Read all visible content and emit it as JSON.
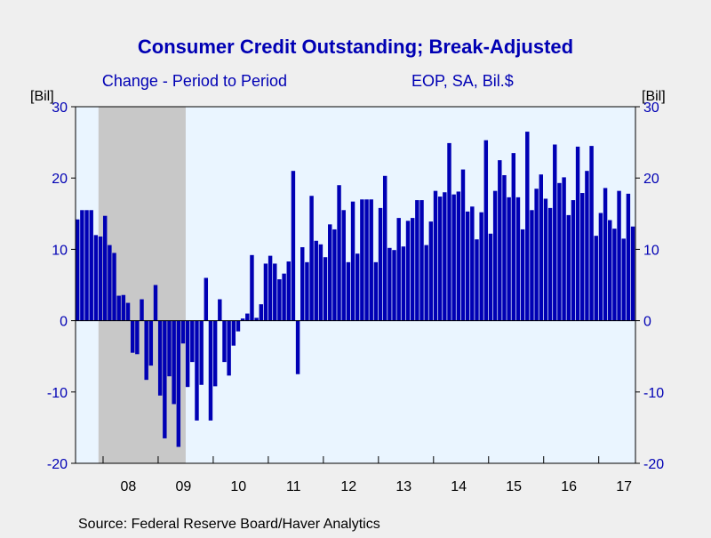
{
  "chart_data": {
    "type": "bar",
    "title": "Consumer Credit Outstanding; Break-Adjusted",
    "subtitle_left": "Change - Period to Period",
    "subtitle_right": "EOP, SA, Bil.$",
    "ylabel_left": "[Bil]",
    "ylabel_right": "[Bil]",
    "source": "Source:  Federal Reserve Board/Haver Analytics",
    "ylim": [
      -20,
      30
    ],
    "yticks": [
      30,
      20,
      10,
      0,
      -10,
      -20
    ],
    "x_tick_labels": [
      "08",
      "09",
      "10",
      "11",
      "12",
      "13",
      "14",
      "15",
      "16",
      "17"
    ],
    "x_start": "2007-07",
    "frequency": "monthly",
    "recession_shading": {
      "start": "2007-12",
      "end": "2009-06"
    },
    "colors": {
      "bar": "#0000b4",
      "plot_bg": "#eaf5ff",
      "recession": "#c8c8c8",
      "axis": "#000000",
      "title": "#0000b4"
    },
    "series": [
      {
        "values": [
          14.2,
          15.5,
          15.5,
          15.5,
          12.0,
          11.8,
          14.7,
          10.6,
          9.5,
          3.5,
          3.6,
          2.5,
          -4.5,
          -4.7,
          3.0,
          -8.3,
          -6.3,
          5.0,
          -10.5,
          -16.5,
          -7.8,
          -11.7,
          -17.7,
          -3.2,
          -9.3,
          -5.8,
          -14.0,
          -9.0,
          6.0,
          -14.0,
          -9.2,
          3.0,
          -5.8,
          -7.7,
          -3.5,
          -1.5,
          0.3,
          1.0,
          9.2,
          0.4,
          2.3,
          8.0,
          9.1,
          8.0,
          5.8,
          6.6,
          8.3,
          21.0,
          -7.5,
          10.3,
          8.2,
          17.5,
          11.2,
          10.7,
          8.9,
          13.5,
          12.8,
          19.0,
          15.5,
          8.2,
          16.7,
          9.4,
          17.0,
          17.0,
          17.0,
          8.2,
          15.8,
          20.3,
          10.2,
          9.9,
          14.4,
          10.4,
          14.0,
          14.4,
          16.9,
          16.9,
          10.6,
          13.9,
          18.2,
          17.4,
          18.0,
          24.9,
          17.7,
          18.1,
          21.2,
          15.3,
          16.0,
          11.4,
          15.2,
          25.3,
          12.2,
          18.2,
          22.5,
          20.4,
          17.3,
          23.5,
          17.3,
          12.8,
          26.5,
          15.5,
          18.5,
          20.5,
          17.1,
          15.8,
          24.7,
          19.3,
          20.1,
          14.8,
          16.9,
          24.4,
          17.9,
          21.0,
          24.5,
          11.9,
          15.1,
          18.6,
          14.1,
          12.9,
          18.2,
          11.5,
          17.8,
          13.2
        ]
      }
    ]
  }
}
